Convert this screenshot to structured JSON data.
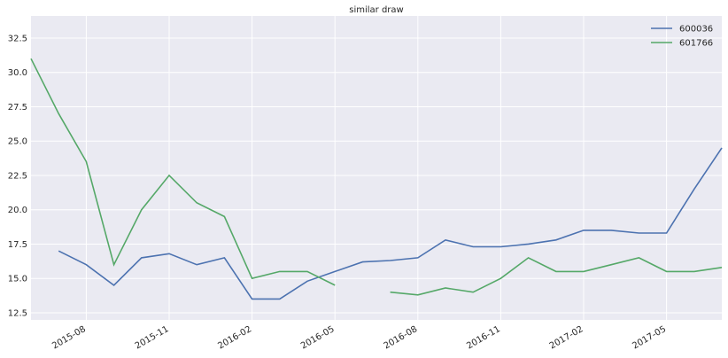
{
  "chart_data": {
    "type": "line",
    "title": "similar draw",
    "x": [
      "2015-06",
      "2015-07",
      "2015-08",
      "2015-09",
      "2015-10",
      "2015-11",
      "2015-12",
      "2016-01",
      "2016-02",
      "2016-03",
      "2016-04",
      "2016-05",
      "2016-06",
      "2016-07",
      "2016-08",
      "2016-09",
      "2016-10",
      "2016-11",
      "2016-12",
      "2017-01",
      "2017-02",
      "2017-03",
      "2017-04",
      "2017-05",
      "2017-06",
      "2017-07"
    ],
    "series": [
      {
        "name": "600036",
        "color": "#4c72b0",
        "values": [
          null,
          17,
          16,
          14.5,
          16.5,
          16.8,
          16,
          16.5,
          13.5,
          13.5,
          14.8,
          15.5,
          16.2,
          16.3,
          16.5,
          17.8,
          17.3,
          17.3,
          17.5,
          17.8,
          18.5,
          18.5,
          18.3,
          18.3,
          21.5,
          24.5
        ]
      },
      {
        "name": "601766",
        "color": "#55a868",
        "values": [
          31,
          27,
          23.5,
          16,
          20,
          22.5,
          20.5,
          19.5,
          15,
          15.5,
          15.5,
          14.5,
          null,
          14,
          13.8,
          14.3,
          14,
          15,
          16.5,
          15.5,
          15.5,
          16,
          16.5,
          15.5,
          15.5,
          15.8
        ]
      }
    ],
    "xlim": [
      "2015-06",
      "2017-07"
    ],
    "xticks": [
      "2015-08",
      "2015-11",
      "2016-02",
      "2016-05",
      "2016-08",
      "2016-11",
      "2017-02",
      "2017-05"
    ],
    "ylim": [
      11.98,
      34.11
    ],
    "yticks": [
      {
        "value": 12.5,
        "label": "12.5"
      },
      {
        "value": 15,
        "label": "15.0"
      },
      {
        "value": 17.5,
        "label": "17.5"
      },
      {
        "value": 20,
        "label": "20.0"
      },
      {
        "value": 22.5,
        "label": "22.5"
      },
      {
        "value": 25,
        "label": "25.0"
      },
      {
        "value": 27.5,
        "label": "27.5"
      },
      {
        "value": 30,
        "label": "30.0"
      },
      {
        "value": 32.5,
        "label": "32.5"
      }
    ],
    "grid": true,
    "legend": "upper right"
  }
}
